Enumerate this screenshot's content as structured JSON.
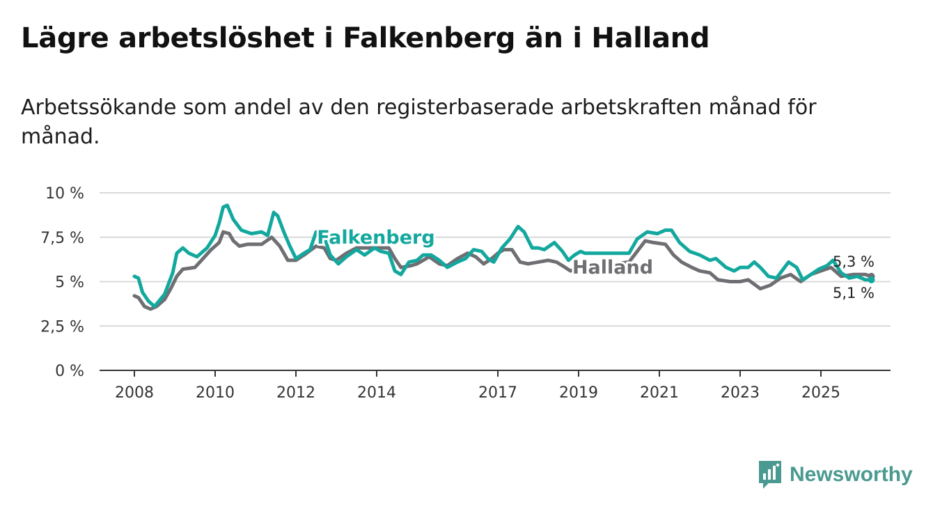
{
  "title": "Lägre arbetslöshet i Falkenberg än i Halland",
  "subtitle": "Arbetssökande som andel av den registerbaserade arbetskraften månad för månad.",
  "brand": {
    "name": "Newsworthy",
    "icon": "bar-chart-speech-bubble-icon"
  },
  "colors": {
    "falkenberg": "#13a89e",
    "halland": "#6e6e73",
    "grid": "#d9d9d9",
    "axis": "#333333",
    "brand": "#4a9a91"
  },
  "chart_data": {
    "type": "line",
    "title": "Lägre arbetslöshet i Falkenberg än i Halland",
    "xlabel": "",
    "ylabel": "",
    "xlim": [
      2008,
      2026.7
    ],
    "ylim": [
      0,
      10
    ],
    "y_ticks": [
      0,
      2.5,
      5,
      7.5,
      10
    ],
    "y_tick_labels": [
      "0 %",
      "2,5 %",
      "5 %",
      "7,5 %",
      "10 %"
    ],
    "x_ticks": [
      2008,
      2010,
      2012,
      2014,
      2017,
      2019,
      2021,
      2023,
      2025
    ],
    "x_tick_labels": [
      "2008",
      "2010",
      "2012",
      "2014",
      "2017",
      "2019",
      "2021",
      "2023",
      "2025"
    ],
    "grid": true,
    "series": [
      {
        "name": "Halland",
        "label": "Halland",
        "end_label": "5,3 %",
        "color": "#6e6e73",
        "points": [
          [
            2008.0,
            4.2
          ],
          [
            2008.1,
            4.1
          ],
          [
            2008.25,
            3.6
          ],
          [
            2008.4,
            3.45
          ],
          [
            2008.55,
            3.6
          ],
          [
            2008.75,
            4.0
          ],
          [
            2008.9,
            4.6
          ],
          [
            2009.05,
            5.3
          ],
          [
            2009.2,
            5.7
          ],
          [
            2009.5,
            5.8
          ],
          [
            2009.7,
            6.3
          ],
          [
            2009.9,
            6.8
          ],
          [
            2010.1,
            7.2
          ],
          [
            2010.2,
            7.8
          ],
          [
            2010.35,
            7.7
          ],
          [
            2010.45,
            7.3
          ],
          [
            2010.6,
            7.0
          ],
          [
            2010.8,
            7.1
          ],
          [
            2011.15,
            7.1
          ],
          [
            2011.4,
            7.5
          ],
          [
            2011.6,
            7.0
          ],
          [
            2011.8,
            6.2
          ],
          [
            2012.0,
            6.2
          ],
          [
            2012.2,
            6.5
          ],
          [
            2012.5,
            7.0
          ],
          [
            2012.7,
            6.9
          ],
          [
            2012.85,
            6.3
          ],
          [
            2013.0,
            6.2
          ],
          [
            2013.25,
            6.6
          ],
          [
            2013.5,
            6.9
          ],
          [
            2013.75,
            6.9
          ],
          [
            2014.0,
            6.9
          ],
          [
            2014.3,
            6.9
          ],
          [
            2014.45,
            6.3
          ],
          [
            2014.6,
            5.8
          ],
          [
            2014.85,
            5.9
          ],
          [
            2015.0,
            6.0
          ],
          [
            2015.3,
            6.4
          ],
          [
            2015.55,
            6.0
          ],
          [
            2015.75,
            5.9
          ],
          [
            2016.0,
            6.3
          ],
          [
            2016.25,
            6.6
          ],
          [
            2016.45,
            6.4
          ],
          [
            2016.65,
            6.0
          ],
          [
            2016.85,
            6.3
          ],
          [
            2017.0,
            6.6
          ],
          [
            2017.15,
            6.8
          ],
          [
            2017.35,
            6.8
          ],
          [
            2017.55,
            6.1
          ],
          [
            2017.75,
            6.0
          ],
          [
            2018.0,
            6.1
          ],
          [
            2018.25,
            6.2
          ],
          [
            2018.45,
            6.1
          ],
          [
            2018.6,
            5.9
          ],
          [
            2018.8,
            5.6
          ],
          [
            2019.0,
            5.8
          ],
          [
            2019.2,
            5.8
          ],
          [
            2020.25,
            6.1
          ],
          [
            2020.45,
            6.7
          ],
          [
            2020.65,
            7.3
          ],
          [
            2020.85,
            7.2
          ],
          [
            2021.15,
            7.1
          ],
          [
            2021.35,
            6.5
          ],
          [
            2021.55,
            6.1
          ],
          [
            2021.8,
            5.8
          ],
          [
            2022.0,
            5.6
          ],
          [
            2022.25,
            5.5
          ],
          [
            2022.45,
            5.1
          ],
          [
            2022.75,
            5.0
          ],
          [
            2023.0,
            5.0
          ],
          [
            2023.2,
            5.1
          ],
          [
            2023.5,
            4.6
          ],
          [
            2023.75,
            4.8
          ],
          [
            2024.0,
            5.2
          ],
          [
            2024.25,
            5.4
          ],
          [
            2024.5,
            5.0
          ],
          [
            2024.75,
            5.4
          ],
          [
            2025.0,
            5.6
          ],
          [
            2025.25,
            5.8
          ],
          [
            2025.5,
            5.3
          ],
          [
            2025.8,
            5.4
          ],
          [
            2026.1,
            5.4
          ],
          [
            2026.25,
            5.3
          ]
        ]
      },
      {
        "name": "Falkenberg",
        "label": "Falkenberg",
        "end_label": "5,1 %",
        "color": "#13a89e",
        "points": [
          [
            2008.0,
            5.3
          ],
          [
            2008.1,
            5.2
          ],
          [
            2008.2,
            4.4
          ],
          [
            2008.35,
            3.9
          ],
          [
            2008.5,
            3.6
          ],
          [
            2008.75,
            4.3
          ],
          [
            2008.95,
            5.5
          ],
          [
            2009.05,
            6.6
          ],
          [
            2009.2,
            6.9
          ],
          [
            2009.35,
            6.6
          ],
          [
            2009.55,
            6.4
          ],
          [
            2009.8,
            6.9
          ],
          [
            2010.0,
            7.6
          ],
          [
            2010.1,
            8.3
          ],
          [
            2010.2,
            9.2
          ],
          [
            2010.3,
            9.3
          ],
          [
            2010.45,
            8.5
          ],
          [
            2010.65,
            7.9
          ],
          [
            2010.9,
            7.7
          ],
          [
            2011.15,
            7.8
          ],
          [
            2011.3,
            7.6
          ],
          [
            2011.45,
            8.9
          ],
          [
            2011.55,
            8.7
          ],
          [
            2011.7,
            7.8
          ],
          [
            2011.85,
            7.0
          ],
          [
            2012.0,
            6.3
          ],
          [
            2012.2,
            6.6
          ],
          [
            2012.35,
            6.8
          ],
          [
            2012.5,
            7.8
          ],
          [
            2012.65,
            7.9
          ],
          [
            2012.85,
            6.5
          ],
          [
            2013.05,
            6.0
          ],
          [
            2013.25,
            6.4
          ],
          [
            2013.5,
            6.8
          ],
          [
            2013.7,
            6.5
          ],
          [
            2013.95,
            6.9
          ],
          [
            2014.1,
            6.7
          ],
          [
            2014.3,
            6.6
          ],
          [
            2014.45,
            5.6
          ],
          [
            2014.6,
            5.4
          ],
          [
            2014.8,
            6.1
          ],
          [
            2015.0,
            6.2
          ],
          [
            2015.15,
            6.5
          ],
          [
            2015.35,
            6.5
          ],
          [
            2015.55,
            6.2
          ],
          [
            2015.75,
            5.8
          ],
          [
            2016.0,
            6.1
          ],
          [
            2016.2,
            6.3
          ],
          [
            2016.4,
            6.8
          ],
          [
            2016.6,
            6.7
          ],
          [
            2016.75,
            6.3
          ],
          [
            2016.9,
            6.1
          ],
          [
            2017.1,
            6.9
          ],
          [
            2017.3,
            7.4
          ],
          [
            2017.5,
            8.1
          ],
          [
            2017.65,
            7.8
          ],
          [
            2017.85,
            6.9
          ],
          [
            2018.0,
            6.9
          ],
          [
            2018.15,
            6.8
          ],
          [
            2018.4,
            7.2
          ],
          [
            2018.6,
            6.7
          ],
          [
            2018.75,
            6.2
          ],
          [
            2018.9,
            6.5
          ],
          [
            2019.05,
            6.7
          ],
          [
            2019.15,
            6.6
          ],
          [
            2020.25,
            6.6
          ],
          [
            2020.45,
            7.4
          ],
          [
            2020.7,
            7.8
          ],
          [
            2020.95,
            7.7
          ],
          [
            2021.15,
            7.9
          ],
          [
            2021.3,
            7.9
          ],
          [
            2021.5,
            7.2
          ],
          [
            2021.75,
            6.7
          ],
          [
            2022.0,
            6.5
          ],
          [
            2022.25,
            6.2
          ],
          [
            2022.4,
            6.3
          ],
          [
            2022.65,
            5.8
          ],
          [
            2022.85,
            5.6
          ],
          [
            2023.0,
            5.8
          ],
          [
            2023.2,
            5.8
          ],
          [
            2023.35,
            6.1
          ],
          [
            2023.5,
            5.8
          ],
          [
            2023.7,
            5.3
          ],
          [
            2023.9,
            5.2
          ],
          [
            2024.0,
            5.5
          ],
          [
            2024.2,
            6.1
          ],
          [
            2024.4,
            5.8
          ],
          [
            2024.55,
            5.1
          ],
          [
            2024.75,
            5.4
          ],
          [
            2024.95,
            5.7
          ],
          [
            2025.15,
            5.9
          ],
          [
            2025.3,
            6.2
          ],
          [
            2025.5,
            5.5
          ],
          [
            2025.7,
            5.2
          ],
          [
            2025.9,
            5.3
          ],
          [
            2026.1,
            5.1
          ],
          [
            2026.25,
            5.1
          ]
        ]
      }
    ]
  }
}
